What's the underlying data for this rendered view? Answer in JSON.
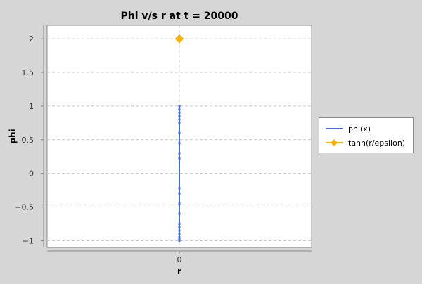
{
  "chart_data": {
    "type": "line",
    "title": "Phi v/s r at t = 20000",
    "xlabel": "r",
    "ylabel": "phi",
    "xlim": [
      -1,
      1
    ],
    "ylim": [
      -1.1,
      2.2
    ],
    "x_ticks": [
      0
    ],
    "x_tick_labels": [
      "0"
    ],
    "y_ticks": [
      -1,
      -0.5,
      0,
      0.5,
      1,
      1.5,
      2
    ],
    "y_tick_labels": [
      "−1",
      "−0.5",
      "0",
      "0.5",
      "1",
      "1.5",
      "2"
    ],
    "grid": true,
    "legend_position": "right",
    "series": [
      {
        "name": "phi(x)",
        "color": "#4169e1",
        "marker": "none",
        "x": [
          0,
          0,
          0,
          0,
          0,
          0,
          0,
          0,
          0,
          0,
          0,
          0,
          0,
          0,
          0,
          0,
          0,
          0,
          0,
          0,
          0
        ],
        "y": [
          -1,
          -0.98,
          -0.95,
          -0.9,
          -0.85,
          -0.8,
          -0.75,
          -0.6,
          -0.45,
          -0.3,
          -0.22,
          0.22,
          0.3,
          0.45,
          0.6,
          0.75,
          0.8,
          0.85,
          0.9,
          0.95,
          1
        ]
      },
      {
        "name": "tanh(r/epsilon)",
        "color": "#ffb000",
        "marker": "diamond",
        "x": [
          0
        ],
        "y": [
          2
        ]
      }
    ]
  }
}
